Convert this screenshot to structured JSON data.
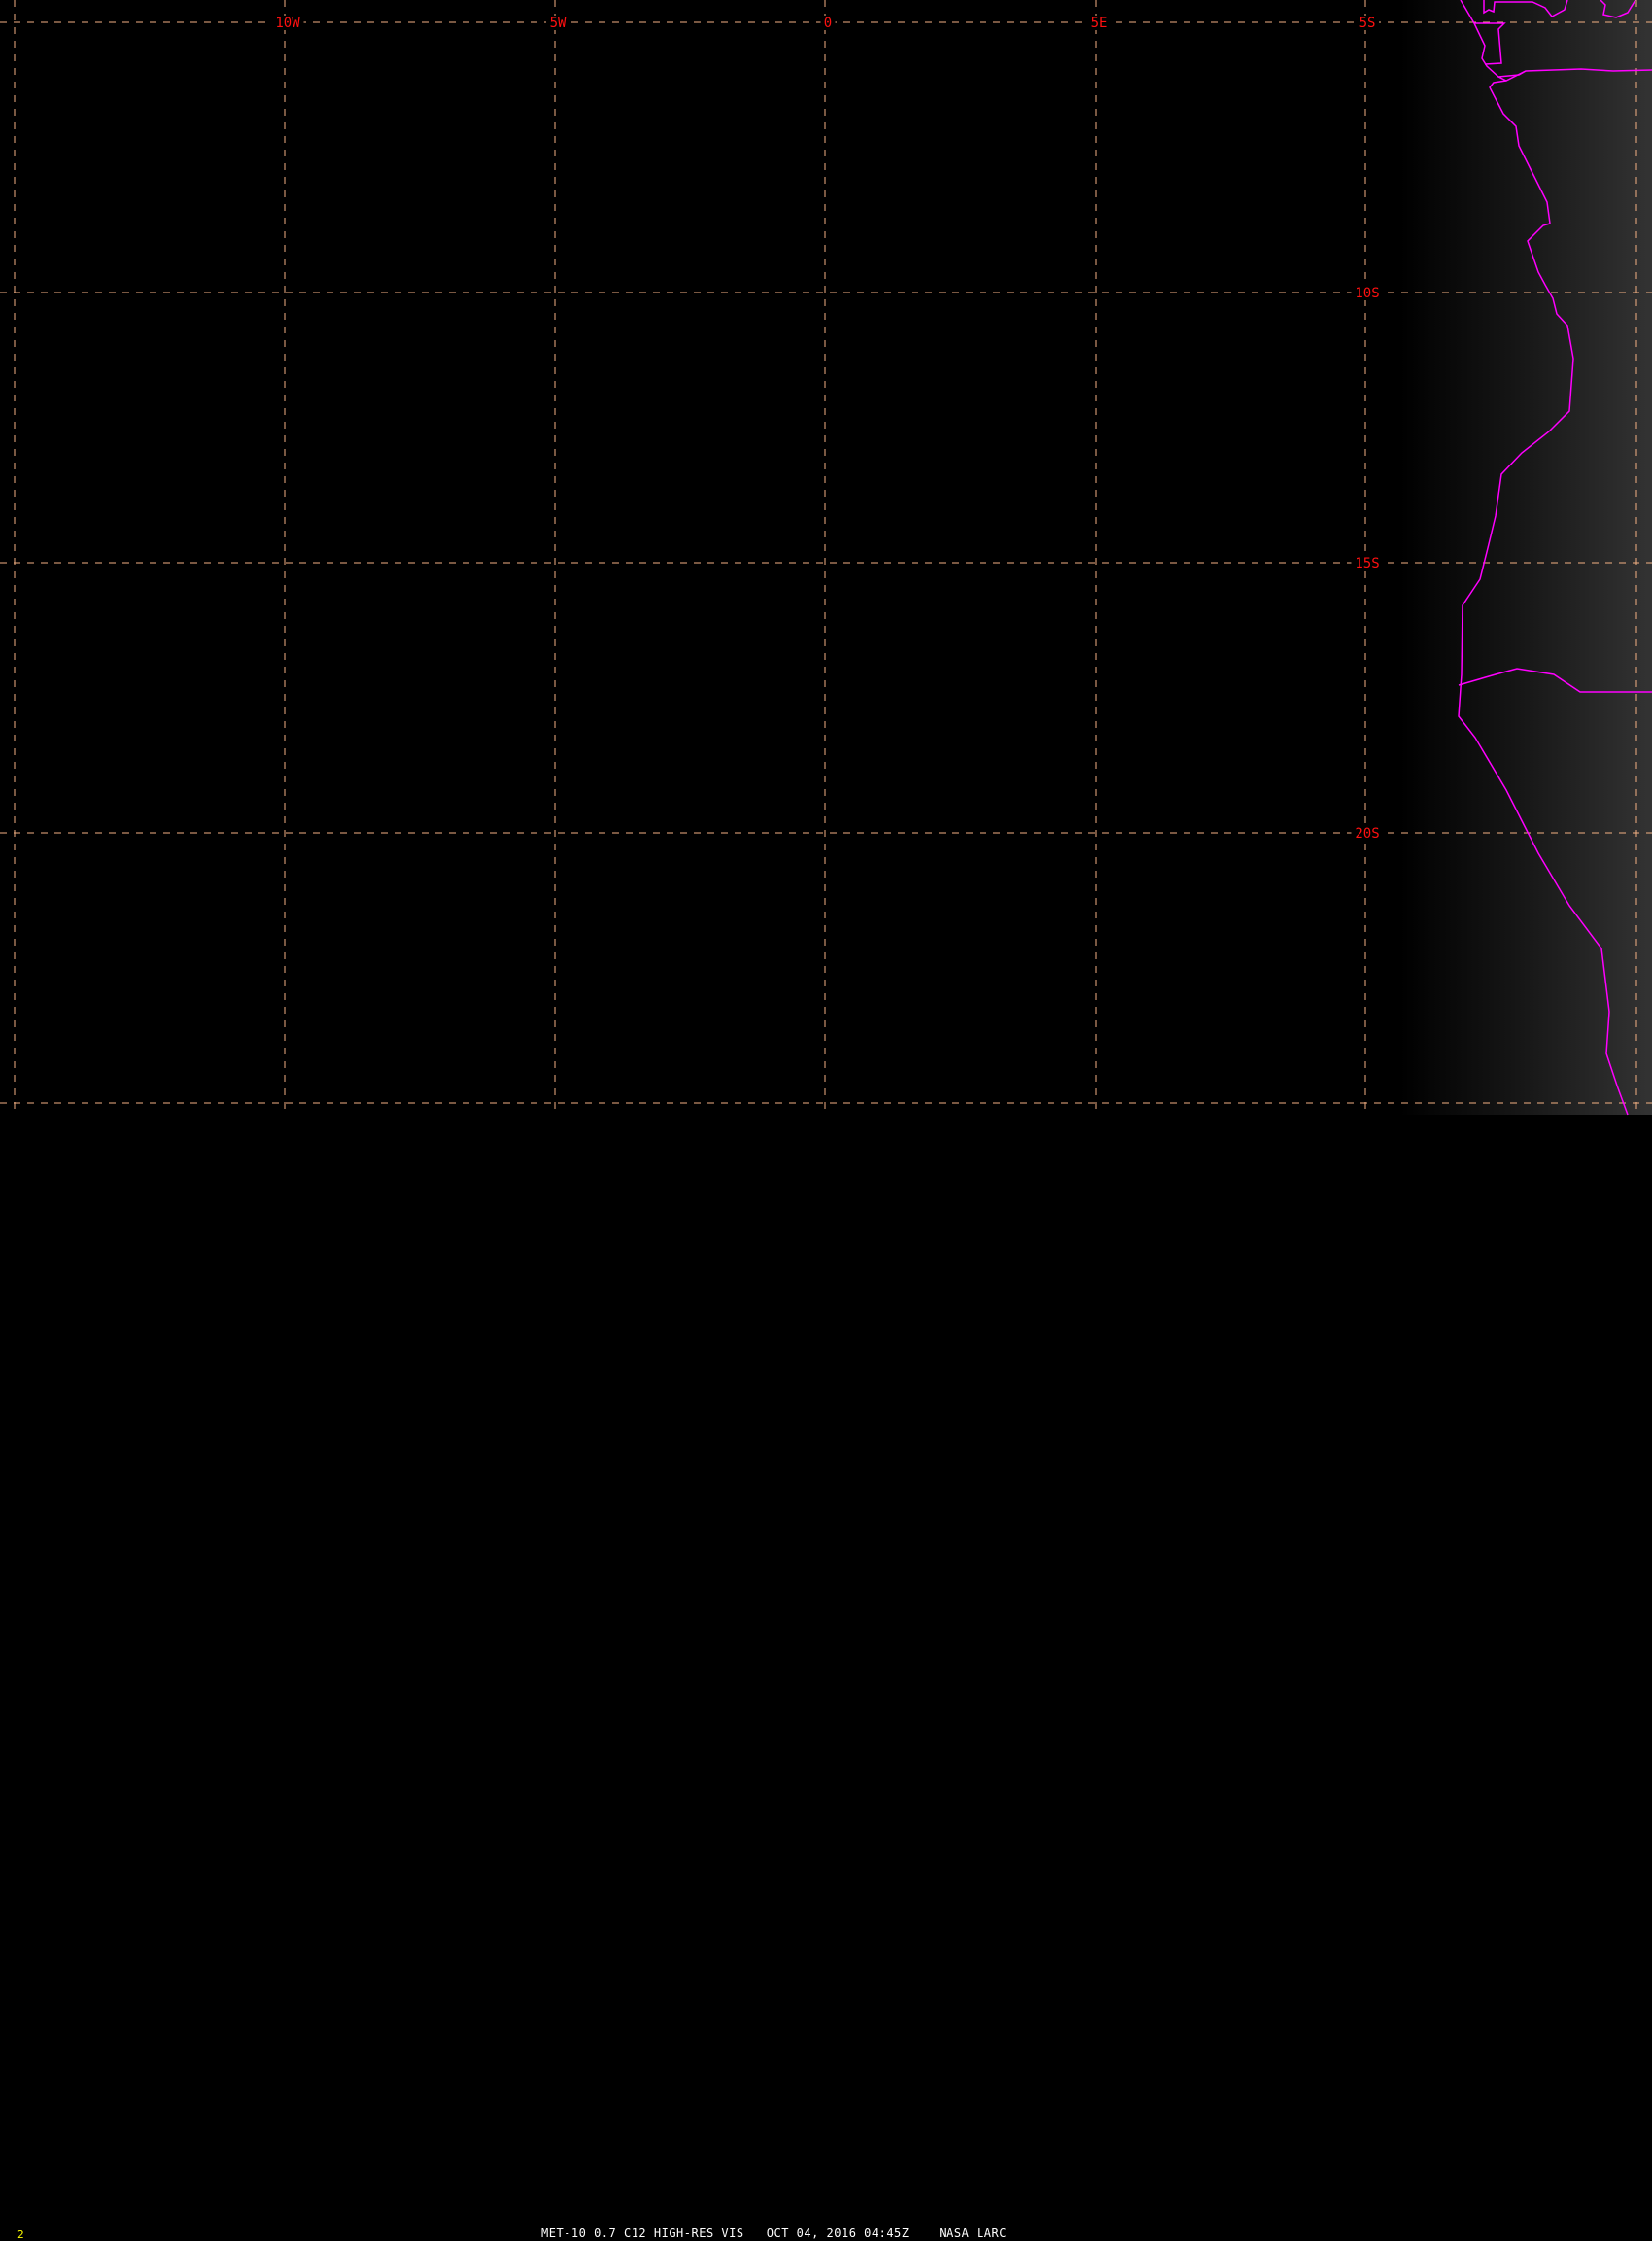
{
  "map": {
    "longitude_labels": [
      "10W",
      "5W",
      "0",
      "5E"
    ],
    "latitude_labels": [
      "5S",
      "10S",
      "15S",
      "20S"
    ],
    "colors": {
      "grid": "#f4b183",
      "labels": "#ff1010",
      "coastline": "#ff00ff",
      "frame_number": "#ffff00"
    }
  },
  "footer": {
    "frame_number": "2",
    "caption": "MET-10 0.7 C12 HIGH-RES VIS   OCT 04, 2016 04:45Z    NASA LARC"
  }
}
